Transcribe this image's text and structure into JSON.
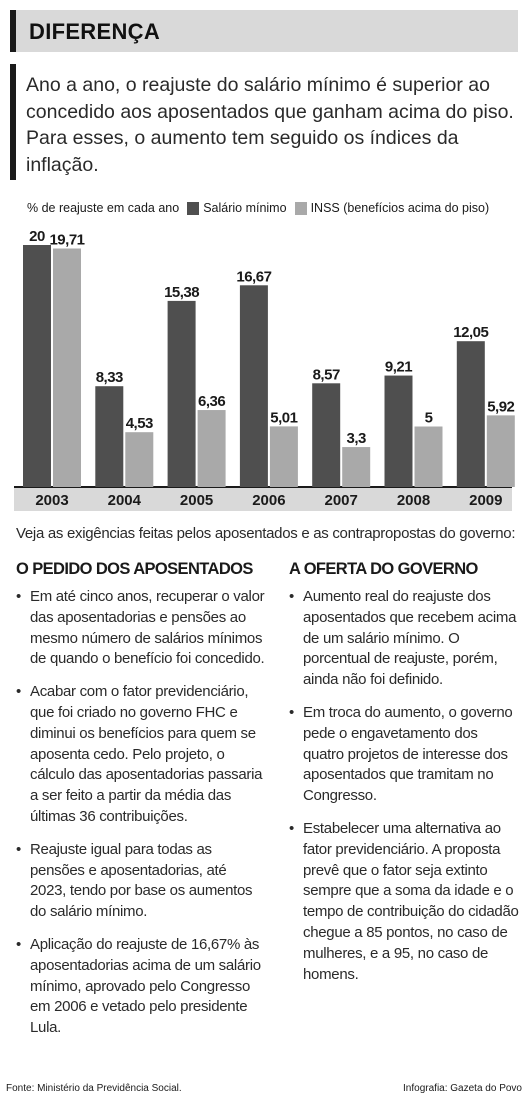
{
  "header": {
    "title": "DIFERENÇA"
  },
  "intro": "Ano a ano, o reajuste do salário mínimo é superior ao concedido aos aposentados que ganham acima do piso. Para esses, o aumento tem seguido os índices da inflação.",
  "legend": {
    "label": "% de reajuste em cada ano",
    "series_a": "Salário mínimo",
    "series_b": "INSS (benefícios acima do piso)"
  },
  "colors": {
    "series_a": "#4f4f4f",
    "series_b": "#a9a9a9",
    "accent": "#1a1a1a"
  },
  "chart_data": {
    "type": "bar",
    "categories": [
      "2003",
      "2004",
      "2005",
      "2006",
      "2007",
      "2008",
      "2009"
    ],
    "series": [
      {
        "name": "Salário mínimo",
        "values": [
          20,
          8.33,
          15.38,
          16.67,
          8.57,
          9.21,
          12.05
        ],
        "labels": [
          "20",
          "8,33",
          "15,38",
          "16,67",
          "8,57",
          "9,21",
          "12,05"
        ]
      },
      {
        "name": "INSS (benefícios acima do piso)",
        "values": [
          19.71,
          4.53,
          6.36,
          5.01,
          3.3,
          5,
          5.92
        ],
        "labels": [
          "19,71",
          "4,53",
          "6,36",
          "5,01",
          "3,3",
          "5",
          "5,92"
        ]
      }
    ],
    "ylabel": "% de reajuste em cada ano",
    "ylim": [
      0,
      20
    ],
    "grid": false,
    "legend_position": "top-left"
  },
  "lead": "Veja as exigências feitas pelos aposentados e as contrapropostas do governo:",
  "left_column": {
    "heading": "O pedido dos aposentados",
    "items": [
      "Em até cinco anos, recuperar o valor das aposentadorias e pensões ao mesmo número de salários mínimos de quando o benefício foi concedido.",
      "Acabar com o fator previdenciário, que foi criado no governo FHC e diminui os benefícios para quem se aposenta cedo. Pelo projeto, o cálculo das aposentadorias passaria a ser feito a partir da média das últimas 36 contribuições.",
      "Reajuste igual para todas as pensões e aposentadorias, até 2023, tendo por base os aumentos do salário mínimo.",
      "Aplicação do reajuste de 16,67% às aposentadorias acima de um salário mínimo, aprovado pelo Congresso em 2006 e vetado pelo presidente Lula."
    ]
  },
  "right_column": {
    "heading": "A oferta do governo",
    "items": [
      "Aumento real do reajuste dos aposentados que recebem acima de um salário mínimo. O porcentual de reajuste, porém, ainda não foi definido.",
      "Em troca do aumento, o governo pede o engavetamento dos quatro projetos de interesse dos aposentados que tramitam no Congresso.",
      "Estabelecer uma alternativa ao fator previdenciário. A proposta prevê que o fator seja extinto sempre que a soma da idade e o tempo de contribuição do cidadão chegue a 85 pontos, no caso de mulheres, e a 95, no caso de homens."
    ]
  },
  "footer": {
    "source": "Fonte: Ministério da Previdência Social.",
    "credit": "Infografia: Gazeta do Povo"
  }
}
